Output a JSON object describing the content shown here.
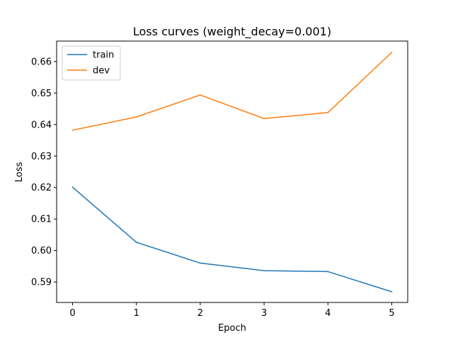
{
  "chart_data": {
    "type": "line",
    "title": "Loss curves (weight_decay=0.001)",
    "xlabel": "Epoch",
    "ylabel": "Loss",
    "x": [
      0,
      1,
      2,
      3,
      4,
      5
    ],
    "xticks": [
      "0",
      "1",
      "2",
      "3",
      "4",
      "5"
    ],
    "xlim": [
      -0.25,
      5.25
    ],
    "yticks": [
      "0.59",
      "0.60",
      "0.61",
      "0.62",
      "0.63",
      "0.64",
      "0.65",
      "0.66"
    ],
    "ylim": [
      0.5835,
      0.6665
    ],
    "grid": false,
    "legend_position": "upper-left",
    "series": [
      {
        "name": "train",
        "color": "#1f77b4",
        "values": [
          0.6201,
          0.6026,
          0.596,
          0.5936,
          0.5933,
          0.5869
        ]
      },
      {
        "name": "dev",
        "color": "#ff7f0e",
        "values": [
          0.6382,
          0.6424,
          0.6494,
          0.6419,
          0.6438,
          0.6629
        ]
      }
    ]
  }
}
